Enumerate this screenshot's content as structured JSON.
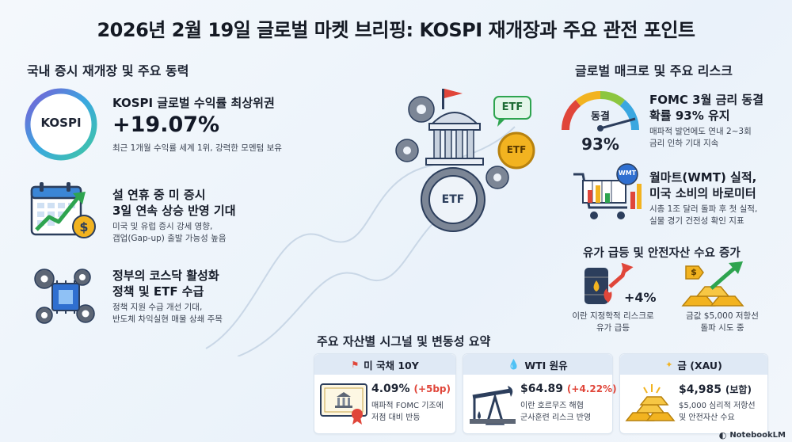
{
  "title": "2026년 2월 19일 글로벌 마켓 브리핑: KOSPI 재개장과 주요 관전 포인트",
  "left_section": {
    "heading": "국내 증시 재개장 및 주요 동력",
    "kospi": {
      "logo": "KOSPI",
      "label": "KOSPI 글로벌 수익률 최상위권",
      "value": "+19.07%",
      "desc": "최근 1개월 수익률 세계 1위, 강력한 모멘텀 보유"
    },
    "holiday": {
      "title_line1": "설 연휴 중 미 증시",
      "title_line2": "3일 연속 상승 반영 기대",
      "desc_line1": "미국 및 유럽 증시 강세 영향,",
      "desc_line2": "갭업(Gap-up) 출발 가능성 높음"
    },
    "policy": {
      "title_line1": "정부의 코스닥 활성화",
      "title_line2": "정책 및 ETF 수급",
      "desc_line1": "정책 지원 수급 개선 기대,",
      "desc_line2": "반도체 차익실현 매물 상쇄 주목"
    }
  },
  "center": {
    "etf_labels": [
      "ETF",
      "ETF",
      "ETF"
    ]
  },
  "right_section": {
    "heading": "글로벌 매크로 및 주요 리스크",
    "fomc": {
      "gauge_label": "동결",
      "gauge_value": "93%",
      "title_line1": "FOMC 3월 금리 동결",
      "title_line2": "확률 93% 유지",
      "desc_line1": "매파적 발언에도 연내 2~3회",
      "desc_line2": "금리 인하 기대 지속"
    },
    "walmart": {
      "badge": "WMT",
      "title_line1": "월마트(WMT) 실적,",
      "title_line2": "미국 소비의 바로미터",
      "desc_line1": "시총 1조 달러 돌파 후 첫 실적,",
      "desc_line2": "실물 경기 건전성 확인 지표"
    },
    "oil_gold": {
      "heading": "유가 급등 및 안전자산 수요 증가",
      "oil_change": "+4%",
      "oil_desc_line1": "이란 지정학적 리스크로",
      "oil_desc_line2": "유가 급등",
      "gold_tag": "$",
      "gold_desc_line1": "금값 $5,000 저항선",
      "gold_desc_line2": "돌파 시도 중"
    }
  },
  "bottom": {
    "heading": "주요 자산별 시그널 및 변동성 요약",
    "cards": [
      {
        "name": "미 국채 10Y",
        "value": "4.09%",
        "change": "(+5bp)",
        "desc_line1": "매파적 FOMC 기조에",
        "desc_line2": "저점 대비 반등"
      },
      {
        "name": "WTI 원유",
        "value": "$64.89",
        "change": "(+4.22%)",
        "desc_line1": "이란 호르무즈 해협",
        "desc_line2": "군사훈련 리스크 반영"
      },
      {
        "name": "금 (XAU)",
        "value": "$4,985",
        "change": "(보합)",
        "desc_line1": "$5,000 심리적 저항선",
        "desc_line2": "및 안전자산 수요"
      }
    ]
  },
  "watermark": "NotebookLM",
  "colors": {
    "accent_green": "#2ea44f",
    "accent_red": "#e0463a",
    "gold": "#f2b320",
    "navy": "#2c3e5c"
  }
}
